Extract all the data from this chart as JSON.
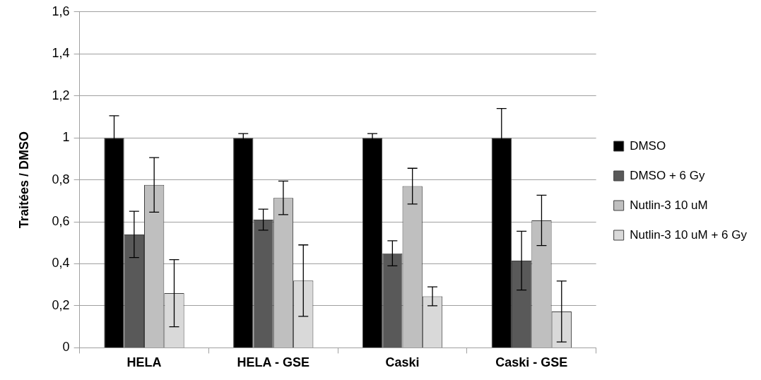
{
  "chart_data": {
    "type": "bar",
    "ylabel": "Traitées / DMSO",
    "categories": [
      "HELA",
      "HELA - GSE",
      "Caski",
      "Caski - GSE"
    ],
    "series": [
      {
        "name": "DMSO",
        "color": "#000000",
        "values": [
          1,
          1,
          1,
          1
        ],
        "errors": [
          0.105,
          0.02,
          0.02,
          0.14
        ]
      },
      {
        "name": "DMSO + 6 Gy",
        "color": "#595959",
        "values": [
          0.54,
          0.61,
          0.45,
          0.415
        ],
        "errors": [
          0.11,
          0.05,
          0.06,
          0.14
        ]
      },
      {
        "name": "Nutlin-3 10 uM",
        "color": "#bfbfbf",
        "values": [
          0.776,
          0.714,
          0.77,
          0.607
        ],
        "errors": [
          0.13,
          0.08,
          0.085,
          0.12
        ]
      },
      {
        "name": "Nutlin-3 10 uM + 6 Gy",
        "color": "#d9d9d9",
        "values": [
          0.26,
          0.32,
          0.245,
          0.173
        ],
        "errors": [
          0.16,
          0.17,
          0.045,
          0.145
        ]
      }
    ],
    "ylim": [
      0,
      1.6
    ],
    "yticks": [
      0,
      {
        "value": 0.2,
        "label": "0,2"
      },
      {
        "value": 0.4,
        "label": "0,4"
      },
      {
        "value": 0.6,
        "label": "0,6"
      },
      {
        "value": 0.8,
        "label": "0,8"
      },
      1,
      {
        "value": 1.2,
        "label": "1,2"
      },
      {
        "value": 1.4,
        "label": "1,4"
      },
      {
        "value": 1.6,
        "label": "1,6"
      }
    ],
    "grid": "y",
    "legend": "right"
  }
}
